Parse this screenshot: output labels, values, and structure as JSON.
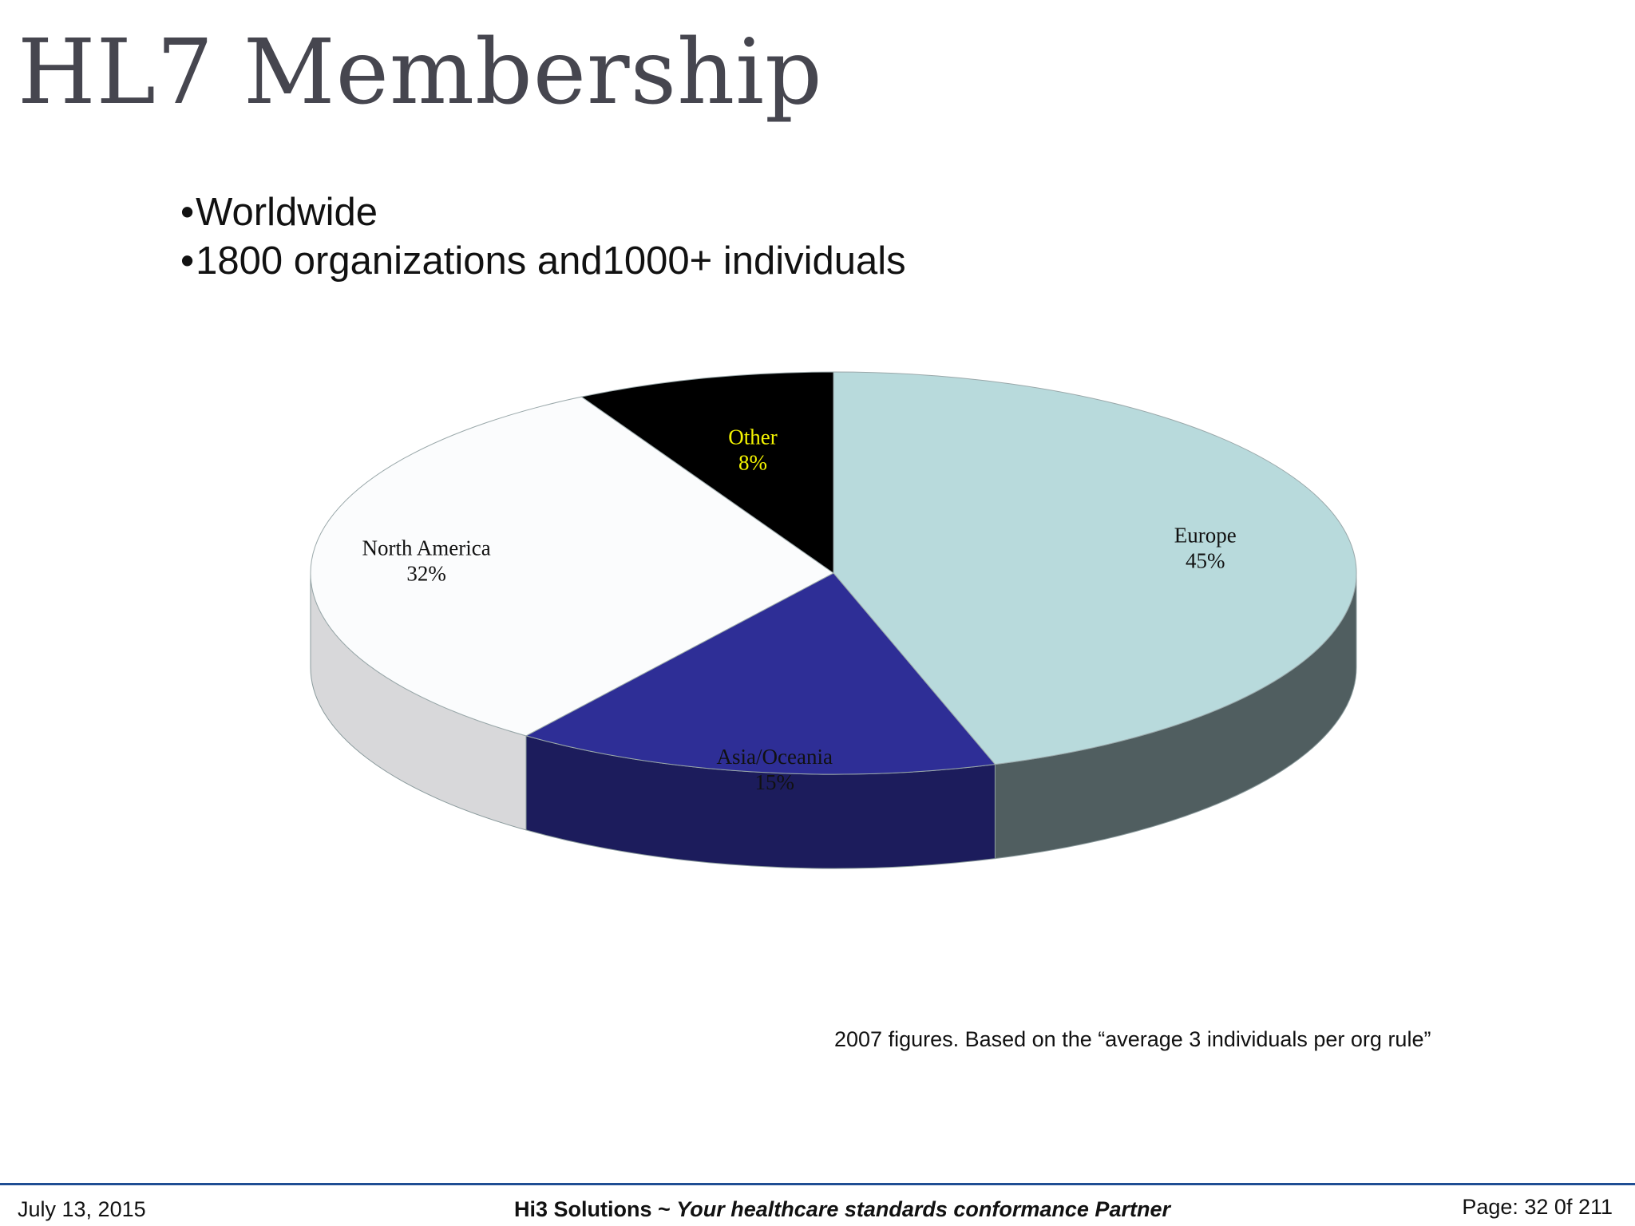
{
  "slide": {
    "title": "HL7 Membership",
    "bullets": [
      "Worldwide",
      "1800 organizations and1000+ individuals"
    ],
    "note": "2007 figures. Based on the “average 3 individuals per org rule”"
  },
  "footer": {
    "date": "July 13, 2015",
    "company": "Hi3 Solutions ~ ",
    "tagline": "Your healthcare standards conformance Partner",
    "page": "Page: 32 0f 211"
  },
  "chart_data": {
    "type": "pie",
    "style": "3d",
    "title": "",
    "slices": [
      {
        "label": "Europe",
        "value": 45,
        "value_label": "45%",
        "color": "#b8dadc",
        "side_color": "#505e60",
        "text_color": "#111111"
      },
      {
        "label": "Asia/Oceania",
        "value": 15,
        "value_label": "15%",
        "color": "#2e2e96",
        "side_color": "#1c1c5c",
        "text_color": "#111111"
      },
      {
        "label": "North America",
        "value": 32,
        "value_label": "32%",
        "color": "#fbfcfd",
        "side_color": "#d8d8da",
        "text_color": "#111111"
      },
      {
        "label": "Other",
        "value": 8,
        "value_label": "8%",
        "color": "#000000",
        "side_color": "#000000",
        "text_color": "#f5f500"
      }
    ]
  }
}
